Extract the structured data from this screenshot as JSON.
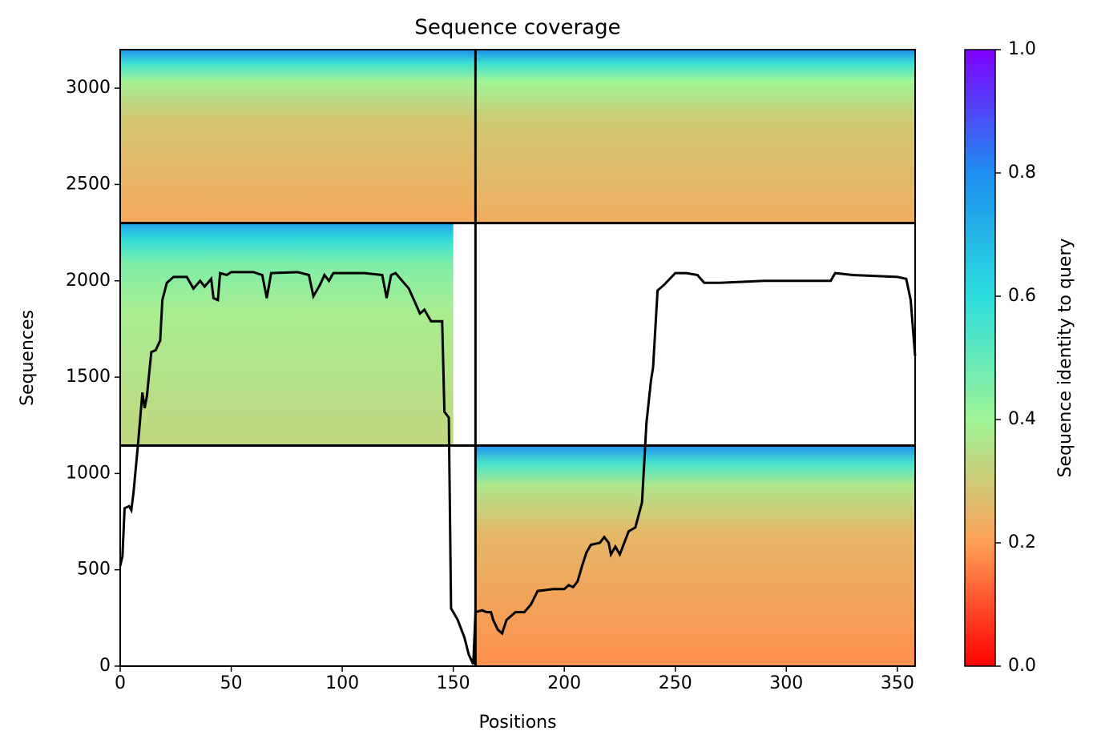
{
  "chart_data": {
    "type": "coverage",
    "title": "Sequence coverage",
    "xlabel": "Positions",
    "ylabel": "Sequences",
    "xlim": [
      0,
      358
    ],
    "ylim": [
      0,
      3200
    ],
    "xticks": [
      0,
      50,
      100,
      150,
      200,
      250,
      300,
      350
    ],
    "yticks": [
      0,
      500,
      1000,
      1500,
      2000,
      2500,
      3000
    ],
    "dividers": {
      "x": [
        160
      ],
      "y": [
        1145,
        2300
      ]
    },
    "blocks": [
      {
        "x": [
          0,
          160
        ],
        "y": [
          2300,
          3200
        ],
        "identity": [
          0.22,
          0.8
        ]
      },
      {
        "x": [
          160,
          358
        ],
        "y": [
          2300,
          3200
        ],
        "identity": [
          0.23,
          0.8
        ]
      },
      {
        "x": [
          0,
          150
        ],
        "y": [
          1145,
          2300
        ],
        "identity": [
          0.33,
          0.75
        ]
      },
      {
        "x": [
          160,
          358
        ],
        "y": [
          0,
          1145
        ],
        "identity": [
          0.18,
          0.8
        ]
      }
    ],
    "line": {
      "color": "#000000",
      "x": [
        0,
        1,
        2,
        4,
        5,
        6,
        8,
        10,
        11,
        12,
        14,
        16,
        18,
        19,
        21,
        24,
        30,
        33,
        36,
        38,
        41,
        42,
        44,
        45,
        48,
        50,
        60,
        64,
        66,
        68,
        80,
        85,
        87,
        90,
        92,
        94,
        96,
        110,
        118,
        120,
        122,
        124,
        130,
        135,
        137,
        140,
        145,
        146,
        148,
        149,
        152,
        155,
        157,
        159,
        160,
        163,
        165,
        167,
        168,
        170,
        172,
        174,
        178,
        182,
        185,
        188,
        195,
        200,
        202,
        204,
        206,
        208,
        210,
        212,
        216,
        218,
        220,
        221,
        223,
        225,
        227,
        229,
        232,
        235,
        237,
        239,
        240,
        241,
        242,
        245,
        250,
        255,
        260,
        263,
        270,
        290,
        300,
        320,
        322,
        330,
        350,
        354,
        356,
        358
      ],
      "values": [
        520,
        570,
        820,
        830,
        810,
        900,
        1150,
        1420,
        1340,
        1400,
        1630,
        1640,
        1690,
        1900,
        1990,
        2020,
        2020,
        1960,
        2000,
        1970,
        2010,
        1910,
        1900,
        2040,
        2030,
        2045,
        2045,
        2030,
        1910,
        2040,
        2045,
        2030,
        1920,
        1980,
        2030,
        2000,
        2040,
        2040,
        2030,
        1910,
        2030,
        2040,
        1960,
        1830,
        1850,
        1790,
        1790,
        1320,
        1290,
        300,
        240,
        150,
        60,
        10,
        280,
        290,
        280,
        280,
        240,
        190,
        170,
        240,
        280,
        280,
        320,
        390,
        400,
        400,
        420,
        410,
        440,
        520,
        590,
        630,
        640,
        670,
        640,
        580,
        620,
        580,
        640,
        700,
        720,
        850,
        1260,
        1480,
        1550,
        1750,
        1950,
        1980,
        2040,
        2040,
        2030,
        1990,
        1990,
        2000,
        2000,
        2000,
        2040,
        2030,
        2020,
        2010,
        1900,
        1610
      ]
    },
    "colorbar": {
      "label": "Sequence identity to query",
      "lim": [
        0,
        1
      ],
      "ticks": [
        {
          "value": 0,
          "label": "0.0"
        },
        {
          "value": 0.2,
          "label": "0.2"
        },
        {
          "value": 0.4,
          "label": "0.4"
        },
        {
          "value": 0.6,
          "label": "0.6"
        },
        {
          "value": 0.8,
          "label": "0.8"
        },
        {
          "value": 1,
          "label": "1.0"
        }
      ],
      "colors": [
        "#ff0000",
        "#ffa056",
        "#9ef596",
        "#2adddd",
        "#1e8ef0",
        "#8000ff"
      ]
    }
  }
}
